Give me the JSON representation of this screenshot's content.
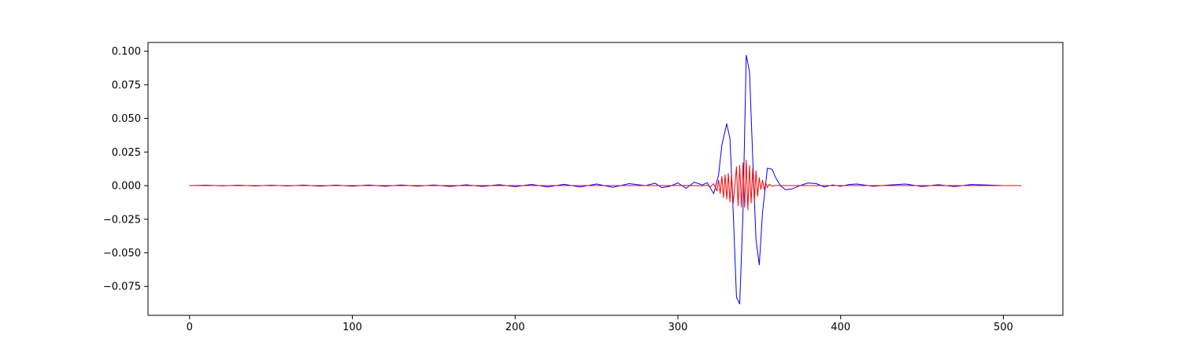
{
  "chart_data": {
    "type": "line",
    "title": "",
    "xlabel": "",
    "ylabel": "",
    "xlim": [
      -25.55,
      536.55
    ],
    "ylim": [
      -0.0965,
      0.1065
    ],
    "xticks": [
      0,
      100,
      200,
      300,
      400,
      500
    ],
    "xtick_labels": [
      "0",
      "100",
      "200",
      "300",
      "400",
      "500"
    ],
    "yticks": [
      -0.075,
      -0.05,
      -0.025,
      0.0,
      0.025,
      0.05,
      0.075,
      0.1
    ],
    "ytick_labels": [
      "−0.075",
      "−0.050",
      "−0.025",
      "0.000",
      "0.025",
      "0.050",
      "0.075",
      "0.100"
    ],
    "grid": false,
    "legend": "none",
    "colors": {
      "blue_series": "#0000ff",
      "red_series": "#ff0000",
      "axes": "#000000",
      "background": "#ffffff"
    },
    "series": [
      {
        "color": "#0000ff",
        "x": [
          0,
          10,
          20,
          30,
          40,
          50,
          60,
          70,
          80,
          90,
          100,
          110,
          120,
          130,
          140,
          150,
          160,
          170,
          180,
          190,
          200,
          210,
          220,
          230,
          240,
          250,
          260,
          270,
          280,
          286,
          290,
          295,
          300,
          305,
          310,
          315,
          318,
          322,
          325,
          327,
          330,
          332,
          334,
          336,
          338,
          340,
          342,
          344,
          346,
          348,
          350,
          352,
          355,
          358,
          360,
          363,
          366,
          370,
          375,
          380,
          385,
          390,
          395,
          400,
          405,
          410,
          420,
          430,
          440,
          450,
          460,
          470,
          480,
          490,
          500,
          511
        ],
        "y": [
          0.0,
          0.0003,
          -0.0002,
          0.0003,
          -0.0003,
          0.0003,
          -0.0003,
          0.0004,
          -0.0004,
          0.0004,
          -0.0004,
          0.0005,
          -0.0005,
          0.0005,
          -0.0004,
          0.0005,
          -0.0006,
          0.0006,
          -0.0006,
          0.0007,
          -0.0008,
          0.0009,
          -0.001,
          0.001,
          -0.001,
          0.0012,
          -0.0013,
          0.0015,
          0.0,
          0.0018,
          -0.0015,
          -0.0005,
          0.002,
          -0.002,
          0.0025,
          0.0005,
          0.0022,
          -0.006,
          0.008,
          0.03,
          0.046,
          0.035,
          -0.02,
          -0.083,
          -0.088,
          -0.02,
          0.097,
          0.085,
          0.02,
          -0.04,
          -0.059,
          -0.02,
          0.013,
          0.012,
          0.006,
          0.0,
          -0.003,
          -0.0025,
          0.0,
          0.002,
          0.0015,
          -0.001,
          0.0005,
          -0.0005,
          0.0008,
          0.0012,
          -0.0005,
          0.0005,
          0.0012,
          -0.0007,
          0.0007,
          -0.0007,
          0.0008,
          0.0005,
          0.0,
          0.0
        ]
      },
      {
        "color": "#ff0000",
        "x": [
          0,
          50,
          100,
          150,
          200,
          250,
          300,
          310,
          315,
          318,
          320,
          322,
          324,
          325,
          326,
          327,
          328,
          329,
          330,
          331,
          332,
          333,
          334,
          335,
          336,
          337,
          338,
          339,
          340,
          341,
          342,
          343,
          344,
          345,
          346,
          347,
          348,
          349,
          350,
          351,
          352,
          353,
          354,
          355,
          356,
          358,
          360,
          365,
          400,
          450,
          511
        ],
        "y": [
          0.0,
          0.0,
          0.0,
          0.0,
          0.0,
          0.0,
          0.0,
          0.0001,
          -0.0002,
          0.0003,
          -0.0008,
          0.0015,
          -0.004,
          0.004,
          -0.006,
          0.007,
          -0.009,
          0.008,
          -0.01,
          0.009,
          -0.012,
          0.008,
          -0.013,
          0.0,
          0.014,
          -0.015,
          0.015,
          -0.016,
          0.017,
          -0.016,
          0.019,
          -0.018,
          0.015,
          -0.013,
          0.013,
          -0.012,
          0.011,
          -0.008,
          0.006,
          -0.003,
          0.004,
          -0.003,
          0.002,
          -0.0015,
          0.001,
          -0.0005,
          0.0002,
          0.0,
          0.0,
          0.0,
          0.0
        ]
      }
    ]
  }
}
